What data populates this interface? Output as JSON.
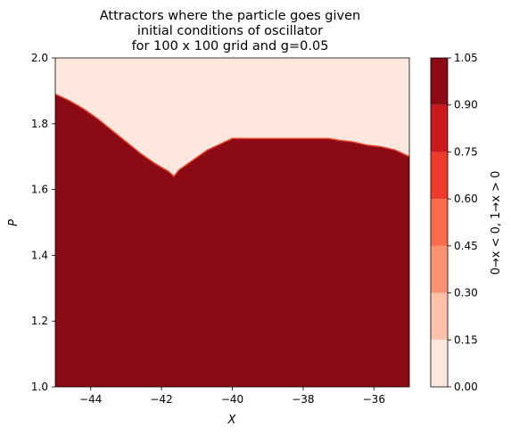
{
  "chart_data": {
    "type": "heatmap",
    "title_lines": [
      "Attractors where the particle goes given",
      "initial conditions of oscillator",
      "for 100 x 100 grid and g=0.05"
    ],
    "xlabel": "X",
    "ylabel": "P",
    "xlim": [
      -45,
      -35
    ],
    "ylim": [
      1.0,
      2.0
    ],
    "x_ticks": [
      -44,
      -42,
      -40,
      -38,
      -36
    ],
    "x_tick_labels": [
      "−44",
      "−42",
      "−40",
      "−38",
      "−36"
    ],
    "y_ticks": [
      1.0,
      1.2,
      1.4,
      1.6,
      1.8,
      2.0
    ],
    "y_tick_labels": [
      "1.0",
      "1.2",
      "1.4",
      "1.6",
      "1.8",
      "2.0"
    ],
    "boundary": {
      "description_values": "P value of the boundary between region 1 (below) and region 0 (above)",
      "x": [
        -45.0,
        -44.6,
        -44.2,
        -43.8,
        -43.4,
        -43.0,
        -42.6,
        -42.2,
        -41.8,
        -41.65,
        -41.5,
        -41.1,
        -40.7,
        -40.3,
        -40.0,
        -39.0,
        -38.0,
        -37.3,
        -37.0,
        -36.6,
        -36.2,
        -35.8,
        -35.4,
        -35.0
      ],
      "p": [
        1.89,
        1.87,
        1.845,
        1.815,
        1.78,
        1.745,
        1.71,
        1.68,
        1.655,
        1.64,
        1.66,
        1.69,
        1.72,
        1.74,
        1.755,
        1.755,
        1.755,
        1.755,
        1.75,
        1.745,
        1.735,
        1.73,
        1.72,
        1.7
      ]
    },
    "region_above_value": 0,
    "region_below_value": 1,
    "colorbar": {
      "levels": [
        0.0,
        0.15,
        0.3,
        0.45,
        0.6,
        0.75,
        0.9,
        1.05
      ],
      "tick_labels": [
        "0.00",
        "0.15",
        "0.30",
        "0.45",
        "0.60",
        "0.75",
        "0.90",
        "1.05"
      ],
      "colors": [
        "#fee8dd",
        "#fcc2aa",
        "#fc9272",
        "#fb6a4a",
        "#ef3b2c",
        "#cb181d",
        "#8b0a14"
      ],
      "label": "0→x < 0,  1→x > 0"
    },
    "region_colors": {
      "above": "#fee8dd",
      "below": "#8b0a14",
      "edge": "#e8442f"
    }
  }
}
